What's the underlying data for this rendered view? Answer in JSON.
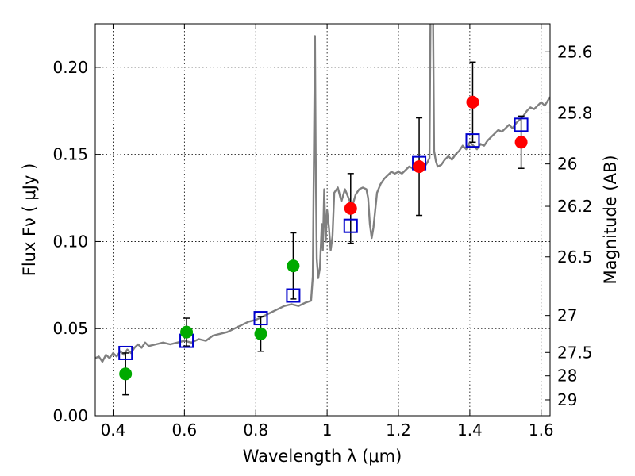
{
  "chart_data": {
    "type": "scatter",
    "xlabel": "Wavelength  λ (μm)",
    "ylabel": "Flux  Fν  ( μJy )",
    "ylabel_right": "Magnitude (AB)",
    "xlim": [
      0.35,
      1.625
    ],
    "ylim": [
      0.0,
      0.225
    ],
    "grid": true,
    "x_ticks": [
      0.4,
      0.6,
      0.8,
      1.0,
      1.2,
      1.4,
      1.6
    ],
    "x_tick_labels": [
      "0.4",
      "0.6",
      "0.8",
      "1",
      "1.2",
      "1.4",
      "1.6"
    ],
    "y_ticks": [
      0.0,
      0.05,
      0.1,
      0.15,
      0.2
    ],
    "y_tick_labels": [
      "0.00",
      "0.05",
      "0.10",
      "0.15",
      "0.20"
    ],
    "right_ticks": [
      {
        "label": "25.6",
        "mag": 25.6
      },
      {
        "label": "25.8",
        "mag": 25.8
      },
      {
        "label": "26",
        "mag": 26.0
      },
      {
        "label": "26.2",
        "mag": 26.2
      },
      {
        "label": "26.5",
        "mag": 26.5
      },
      {
        "label": "27",
        "mag": 27.0
      },
      {
        "label": "27.5",
        "mag": 27.5
      },
      {
        "label": "28",
        "mag": 28.0
      },
      {
        "label": "29",
        "mag": 29.0
      }
    ],
    "colors": {
      "green": "#00aa00",
      "red": "#ff0000",
      "model_box": "#0000cc",
      "spectrum": "#808080",
      "errorbar": "#000000"
    },
    "series": [
      {
        "name": "observed (green)",
        "points": [
          {
            "x": 0.435,
            "y": 0.024,
            "err": 0.012
          },
          {
            "x": 0.606,
            "y": 0.048,
            "err": 0.008
          },
          {
            "x": 0.814,
            "y": 0.047,
            "err": 0.01
          },
          {
            "x": 0.905,
            "y": 0.086,
            "err": 0.019
          }
        ]
      },
      {
        "name": "observed (red)",
        "points": [
          {
            "x": 1.066,
            "y": 0.119,
            "err": 0.02
          },
          {
            "x": 1.258,
            "y": 0.143,
            "err": 0.028
          },
          {
            "x": 1.408,
            "y": 0.18,
            "err": 0.023
          },
          {
            "x": 1.544,
            "y": 0.157,
            "err": 0.015
          }
        ]
      },
      {
        "name": "model photometry (squares)",
        "points": [
          {
            "x": 0.435,
            "y": 0.036
          },
          {
            "x": 0.606,
            "y": 0.043
          },
          {
            "x": 0.814,
            "y": 0.056
          },
          {
            "x": 0.905,
            "y": 0.069
          },
          {
            "x": 1.066,
            "y": 0.109
          },
          {
            "x": 1.258,
            "y": 0.145
          },
          {
            "x": 1.408,
            "y": 0.158
          },
          {
            "x": 1.544,
            "y": 0.167
          }
        ]
      },
      {
        "name": "model spectrum",
        "type": "line",
        "points": [
          [
            0.35,
            0.033
          ],
          [
            0.36,
            0.034
          ],
          [
            0.37,
            0.031
          ],
          [
            0.38,
            0.035
          ],
          [
            0.39,
            0.033
          ],
          [
            0.4,
            0.036
          ],
          [
            0.41,
            0.034
          ],
          [
            0.42,
            0.037
          ],
          [
            0.43,
            0.035
          ],
          [
            0.44,
            0.038
          ],
          [
            0.45,
            0.036
          ],
          [
            0.46,
            0.039
          ],
          [
            0.47,
            0.041
          ],
          [
            0.48,
            0.039
          ],
          [
            0.49,
            0.042
          ],
          [
            0.5,
            0.04
          ],
          [
            0.52,
            0.041
          ],
          [
            0.54,
            0.042
          ],
          [
            0.56,
            0.041
          ],
          [
            0.58,
            0.042
          ],
          [
            0.6,
            0.043
          ],
          [
            0.62,
            0.042
          ],
          [
            0.64,
            0.044
          ],
          [
            0.66,
            0.043
          ],
          [
            0.68,
            0.046
          ],
          [
            0.7,
            0.047
          ],
          [
            0.72,
            0.048
          ],
          [
            0.74,
            0.05
          ],
          [
            0.76,
            0.052
          ],
          [
            0.78,
            0.054
          ],
          [
            0.8,
            0.055
          ],
          [
            0.82,
            0.057
          ],
          [
            0.84,
            0.059
          ],
          [
            0.86,
            0.061
          ],
          [
            0.88,
            0.063
          ],
          [
            0.9,
            0.064
          ],
          [
            0.92,
            0.063
          ],
          [
            0.94,
            0.065
          ],
          [
            0.955,
            0.066
          ],
          [
            0.96,
            0.08
          ],
          [
            0.963,
            0.15
          ],
          [
            0.966,
            0.218
          ],
          [
            0.968,
            0.15
          ],
          [
            0.971,
            0.09
          ],
          [
            0.975,
            0.079
          ],
          [
            0.98,
            0.085
          ],
          [
            0.985,
            0.11
          ],
          [
            0.988,
            0.095
          ],
          [
            0.992,
            0.13
          ],
          [
            0.996,
            0.1
          ],
          [
            1.0,
            0.118
          ],
          [
            1.005,
            0.108
          ],
          [
            1.01,
            0.095
          ],
          [
            1.015,
            0.103
          ],
          [
            1.02,
            0.128
          ],
          [
            1.03,
            0.131
          ],
          [
            1.04,
            0.123
          ],
          [
            1.05,
            0.13
          ],
          [
            1.06,
            0.125
          ],
          [
            1.07,
            0.12
          ],
          [
            1.08,
            0.127
          ],
          [
            1.09,
            0.13
          ],
          [
            1.1,
            0.131
          ],
          [
            1.11,
            0.13
          ],
          [
            1.115,
            0.125
          ],
          [
            1.12,
            0.11
          ],
          [
            1.125,
            0.102
          ],
          [
            1.13,
            0.108
          ],
          [
            1.14,
            0.128
          ],
          [
            1.15,
            0.133
          ],
          [
            1.16,
            0.136
          ],
          [
            1.17,
            0.138
          ],
          [
            1.18,
            0.14
          ],
          [
            1.19,
            0.139
          ],
          [
            1.2,
            0.14
          ],
          [
            1.21,
            0.139
          ],
          [
            1.22,
            0.141
          ],
          [
            1.23,
            0.143
          ],
          [
            1.24,
            0.142
          ],
          [
            1.25,
            0.145
          ],
          [
            1.26,
            0.14
          ],
          [
            1.27,
            0.142
          ],
          [
            1.28,
            0.145
          ],
          [
            1.287,
            0.148
          ],
          [
            1.29,
            0.23
          ],
          [
            1.297,
            0.23
          ],
          [
            1.3,
            0.152
          ],
          [
            1.305,
            0.146
          ],
          [
            1.31,
            0.143
          ],
          [
            1.32,
            0.144
          ],
          [
            1.33,
            0.147
          ],
          [
            1.34,
            0.149
          ],
          [
            1.35,
            0.147
          ],
          [
            1.36,
            0.15
          ],
          [
            1.37,
            0.152
          ],
          [
            1.38,
            0.155
          ],
          [
            1.39,
            0.153
          ],
          [
            1.4,
            0.157
          ],
          [
            1.41,
            0.155
          ],
          [
            1.42,
            0.153
          ],
          [
            1.43,
            0.156
          ],
          [
            1.44,
            0.155
          ],
          [
            1.45,
            0.158
          ],
          [
            1.46,
            0.16
          ],
          [
            1.47,
            0.162
          ],
          [
            1.48,
            0.164
          ],
          [
            1.49,
            0.163
          ],
          [
            1.5,
            0.165
          ],
          [
            1.51,
            0.167
          ],
          [
            1.52,
            0.165
          ],
          [
            1.53,
            0.168
          ],
          [
            1.54,
            0.17
          ],
          [
            1.55,
            0.172
          ],
          [
            1.56,
            0.175
          ],
          [
            1.57,
            0.177
          ],
          [
            1.58,
            0.176
          ],
          [
            1.59,
            0.178
          ],
          [
            1.6,
            0.18
          ],
          [
            1.61,
            0.178
          ],
          [
            1.625,
            0.183
          ]
        ]
      }
    ]
  }
}
